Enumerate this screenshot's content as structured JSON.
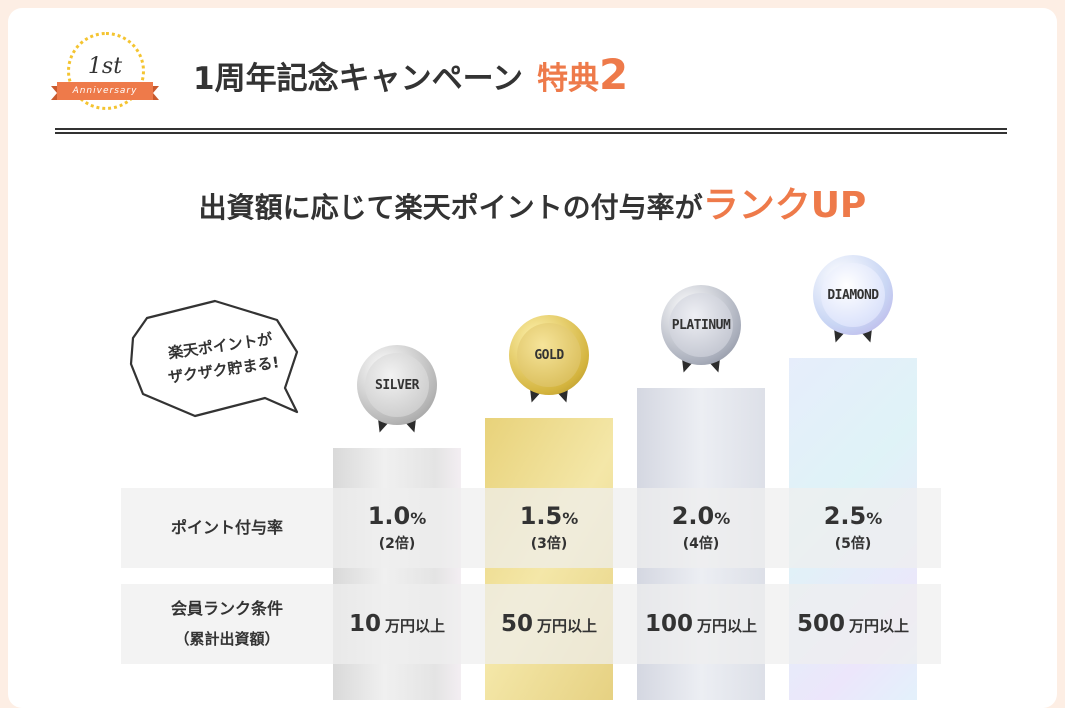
{
  "badge": {
    "ordinal": "1st",
    "ribbon": "Anniversary"
  },
  "header": {
    "title": "1周年記念キャンペーン",
    "accent": "特典",
    "accent_num": "2"
  },
  "subhead": {
    "main": "出資額に応じて楽天ポイントの付与率が",
    "accent": "ランクUP"
  },
  "bubble": {
    "line1": "楽天ポイントが",
    "line2": "ザクザク貯まる!"
  },
  "ranks": [
    {
      "name": "SILVER",
      "rate": "1.0",
      "rate_unit": "%",
      "multiplier": "(2倍)",
      "amount": "10",
      "amount_unit": "万円以上"
    },
    {
      "name": "GOLD",
      "rate": "1.5",
      "rate_unit": "%",
      "multiplier": "(3倍)",
      "amount": "50",
      "amount_unit": "万円以上"
    },
    {
      "name": "PLATINUM",
      "rate": "2.0",
      "rate_unit": "%",
      "multiplier": "(4倍)",
      "amount": "100",
      "amount_unit": "万円以上"
    },
    {
      "name": "DIAMOND",
      "rate": "2.5",
      "rate_unit": "%",
      "multiplier": "(5倍)",
      "amount": "500",
      "amount_unit": "万円以上"
    }
  ],
  "table": {
    "rate_label": "ポイント付与率",
    "cond_label": "会員ランク条件",
    "cond_sublabel": "（累計出資額）"
  },
  "colors": {
    "accent": "#ee7a4a",
    "page_bg": "#fdeee4",
    "text": "#333333"
  }
}
